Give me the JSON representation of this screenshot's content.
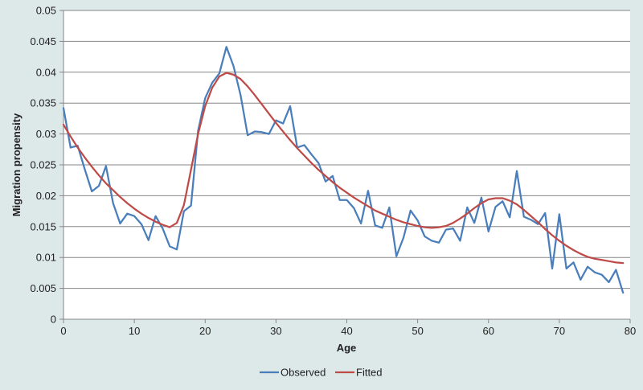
{
  "chart_data": {
    "type": "line",
    "title": "",
    "xlabel": "Age",
    "ylabel": "Migration propensity",
    "xlim": [
      0,
      80
    ],
    "ylim": [
      0,
      0.05
    ],
    "grid": "horizontal",
    "legend_position": "bottom",
    "x_ticks": [
      "0",
      "10",
      "20",
      "30",
      "40",
      "50",
      "60",
      "70",
      "80"
    ],
    "y_ticks": [
      "0",
      "0.005",
      "0.01",
      "0.015",
      "0.02",
      "0.025",
      "0.03",
      "0.035",
      "0.04",
      "0.045",
      "0.05"
    ],
    "x": [
      0,
      1,
      2,
      3,
      4,
      5,
      6,
      7,
      8,
      9,
      10,
      11,
      12,
      13,
      14,
      15,
      16,
      17,
      18,
      19,
      20,
      21,
      22,
      23,
      24,
      25,
      26,
      27,
      28,
      29,
      30,
      31,
      32,
      33,
      34,
      35,
      36,
      37,
      38,
      39,
      40,
      41,
      42,
      43,
      44,
      45,
      46,
      47,
      48,
      49,
      50,
      51,
      52,
      53,
      54,
      55,
      56,
      57,
      58,
      59,
      60,
      61,
      62,
      63,
      64,
      65,
      66,
      67,
      68,
      69,
      70,
      71,
      72,
      73,
      74,
      75,
      76,
      77,
      78,
      79
    ],
    "series": [
      {
        "name": "Observed",
        "color": "#4a7ebb",
        "values": [
          0.0342,
          0.0278,
          0.0281,
          0.0243,
          0.0207,
          0.0216,
          0.0248,
          0.0188,
          0.0155,
          0.0171,
          0.0167,
          0.0154,
          0.0128,
          0.0167,
          0.0147,
          0.0118,
          0.0113,
          0.0175,
          0.0184,
          0.0305,
          0.0358,
          0.0383,
          0.0398,
          0.0441,
          0.041,
          0.0363,
          0.0298,
          0.0304,
          0.0303,
          0.03,
          0.0322,
          0.0317,
          0.0345,
          0.0278,
          0.0282,
          0.0267,
          0.0253,
          0.0223,
          0.0232,
          0.0193,
          0.0193,
          0.018,
          0.0155,
          0.0208,
          0.0152,
          0.0148,
          0.0181,
          0.0102,
          0.0132,
          0.0176,
          0.016,
          0.0134,
          0.0127,
          0.0124,
          0.0145,
          0.0147,
          0.0127,
          0.0181,
          0.0156,
          0.0197,
          0.0142,
          0.0182,
          0.0191,
          0.0165,
          0.024,
          0.0166,
          0.0161,
          0.0154,
          0.0172,
          0.0082,
          0.017,
          0.0082,
          0.0092,
          0.0064,
          0.0085,
          0.0076,
          0.0072,
          0.006,
          0.008,
          0.0043
        ]
      },
      {
        "name": "Fitted",
        "color": "#be4b48",
        "values": [
          0.0315,
          0.0296,
          0.0278,
          0.0262,
          0.0247,
          0.0233,
          0.022,
          0.0209,
          0.0198,
          0.0188,
          0.0179,
          0.0171,
          0.0164,
          0.0158,
          0.0153,
          0.0149,
          0.0156,
          0.0185,
          0.0242,
          0.03,
          0.0345,
          0.0375,
          0.0393,
          0.0399,
          0.0396,
          0.0389,
          0.0377,
          0.0363,
          0.0348,
          0.0333,
          0.0318,
          0.0304,
          0.029,
          0.0277,
          0.0265,
          0.0253,
          0.0242,
          0.0232,
          0.0222,
          0.0213,
          0.0205,
          0.0197,
          0.019,
          0.0183,
          0.0176,
          0.0171,
          0.0166,
          0.0161,
          0.0157,
          0.0154,
          0.0151,
          0.0149,
          0.0148,
          0.0149,
          0.0151,
          0.0156,
          0.0163,
          0.0171,
          0.018,
          0.0188,
          0.0194,
          0.0196,
          0.0196,
          0.0192,
          0.0186,
          0.0177,
          0.0167,
          0.0157,
          0.0146,
          0.0136,
          0.0127,
          0.0119,
          0.0112,
          0.0106,
          0.0101,
          0.0098,
          0.0096,
          0.0094,
          0.0092,
          0.0091
        ]
      }
    ]
  }
}
